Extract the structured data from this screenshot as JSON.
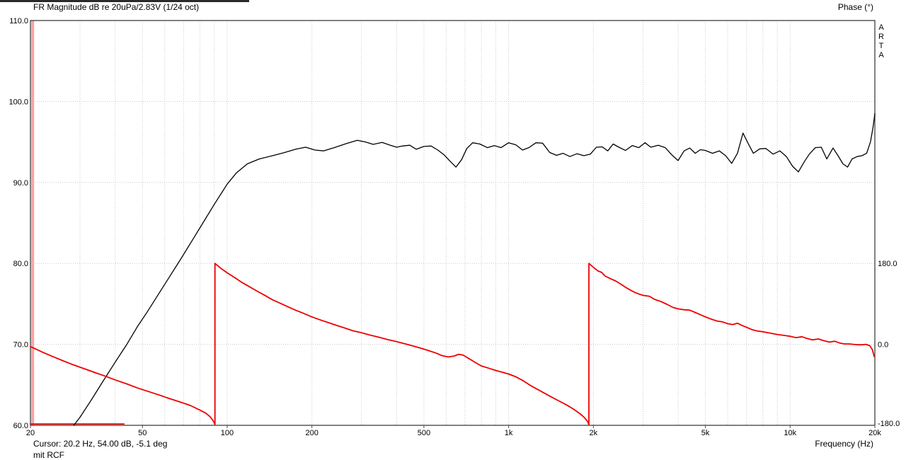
{
  "header": {
    "title": "FR Magnitude dB re 20uPa/2.83V (1/24 oct)",
    "right_axis_title": "Phase (°)",
    "brand_vertical": "ARTA"
  },
  "status": {
    "cursor_readout": "Cursor: 20.2 Hz, 54.00 dB, -5.1 deg",
    "note": "mit RCF",
    "x_axis_label": "Frequency (Hz)"
  },
  "colors": {
    "magnitude_curve": "#000000",
    "phase_curve": "#ee0000",
    "cursor_band": "#f7a4a4",
    "grid": "#c8c8c8",
    "frame": "#4d4d4d",
    "background": "#ffffff"
  },
  "chart_data": {
    "type": "line",
    "title": "FR Magnitude dB re 20uPa/2.83V (1/24 oct)",
    "x_axis": {
      "label": "Frequency (Hz)",
      "scale": "log",
      "min": 20,
      "max": 20000,
      "tick_values": [
        20,
        50,
        100,
        200,
        500,
        1000,
        2000,
        5000,
        10000,
        20000
      ],
      "tick_labels": [
        "20",
        "50",
        "100",
        "200",
        "500",
        "1k",
        "2k",
        "5k",
        "10k",
        "20k"
      ],
      "minor_grid": [
        30,
        40,
        50,
        60,
        70,
        80,
        90,
        100,
        200,
        300,
        400,
        500,
        600,
        700,
        800,
        900,
        1000,
        2000,
        3000,
        4000,
        5000,
        6000,
        7000,
        8000,
        9000,
        10000
      ]
    },
    "y_left_axis": {
      "label": "dB",
      "min": 60,
      "max": 110,
      "tick_values": [
        110,
        100,
        90,
        80,
        70,
        60
      ],
      "tick_labels": [
        "110.0",
        "100.0",
        "90.0",
        "80.0",
        "70.0",
        "60.0"
      ],
      "grid_values": [
        100,
        90,
        80,
        70
      ]
    },
    "y_right_axis": {
      "label": "Phase (°)",
      "min": -180,
      "max": 180,
      "tick_values": [
        180,
        0,
        -180
      ],
      "tick_labels": [
        "180.0",
        "0.0",
        "-180.0"
      ],
      "maps_to_db_band": [
        60,
        80
      ]
    },
    "cursor": {
      "freq_hz": 20.2,
      "magnitude_db": 54.0,
      "phase_deg": -5.1
    },
    "grid": true,
    "legend": "none",
    "series": [
      {
        "name": "magnitude",
        "unit": "dB",
        "color": "#000000",
        "width": 1.3,
        "points": [
          [
            28.5,
            60.0
          ],
          [
            30,
            61.0
          ],
          [
            33,
            63.2
          ],
          [
            36,
            65.3
          ],
          [
            40,
            67.8
          ],
          [
            44,
            70.0
          ],
          [
            48,
            72.2
          ],
          [
            52,
            74.0
          ],
          [
            57,
            76.2
          ],
          [
            62,
            78.2
          ],
          [
            68,
            80.4
          ],
          [
            75,
            82.8
          ],
          [
            82,
            85.0
          ],
          [
            90,
            87.3
          ],
          [
            100,
            89.8
          ],
          [
            108,
            91.2
          ],
          [
            118,
            92.3
          ],
          [
            130,
            92.9
          ],
          [
            145,
            93.3
          ],
          [
            160,
            93.7
          ],
          [
            175,
            94.1
          ],
          [
            190,
            94.35
          ],
          [
            205,
            94.0
          ],
          [
            220,
            93.9
          ],
          [
            240,
            94.3
          ],
          [
            265,
            94.8
          ],
          [
            290,
            95.2
          ],
          [
            310,
            95.0
          ],
          [
            330,
            94.7
          ],
          [
            355,
            94.95
          ],
          [
            380,
            94.6
          ],
          [
            400,
            94.35
          ],
          [
            420,
            94.5
          ],
          [
            445,
            94.6
          ],
          [
            470,
            94.1
          ],
          [
            500,
            94.45
          ],
          [
            530,
            94.5
          ],
          [
            560,
            94.0
          ],
          [
            590,
            93.4
          ],
          [
            620,
            92.6
          ],
          [
            650,
            91.9
          ],
          [
            680,
            92.8
          ],
          [
            710,
            94.2
          ],
          [
            745,
            94.9
          ],
          [
            790,
            94.75
          ],
          [
            840,
            94.3
          ],
          [
            890,
            94.55
          ],
          [
            940,
            94.3
          ],
          [
            1000,
            94.9
          ],
          [
            1060,
            94.65
          ],
          [
            1120,
            94.0
          ],
          [
            1180,
            94.3
          ],
          [
            1250,
            94.9
          ],
          [
            1320,
            94.85
          ],
          [
            1400,
            93.7
          ],
          [
            1480,
            93.35
          ],
          [
            1560,
            93.6
          ],
          [
            1650,
            93.2
          ],
          [
            1750,
            93.55
          ],
          [
            1850,
            93.3
          ],
          [
            1950,
            93.5
          ],
          [
            2050,
            94.35
          ],
          [
            2150,
            94.4
          ],
          [
            2250,
            93.9
          ],
          [
            2350,
            94.75
          ],
          [
            2450,
            94.4
          ],
          [
            2600,
            93.95
          ],
          [
            2750,
            94.55
          ],
          [
            2900,
            94.3
          ],
          [
            3050,
            94.9
          ],
          [
            3200,
            94.35
          ],
          [
            3400,
            94.6
          ],
          [
            3600,
            94.3
          ],
          [
            3800,
            93.4
          ],
          [
            4000,
            92.7
          ],
          [
            4200,
            93.9
          ],
          [
            4400,
            94.25
          ],
          [
            4600,
            93.6
          ],
          [
            4800,
            94.05
          ],
          [
            5000,
            93.95
          ],
          [
            5300,
            93.6
          ],
          [
            5600,
            93.9
          ],
          [
            5900,
            93.3
          ],
          [
            6200,
            92.35
          ],
          [
            6500,
            93.6
          ],
          [
            6800,
            96.1
          ],
          [
            7100,
            94.8
          ],
          [
            7400,
            93.6
          ],
          [
            7800,
            94.15
          ],
          [
            8200,
            94.2
          ],
          [
            8700,
            93.5
          ],
          [
            9200,
            93.9
          ],
          [
            9700,
            93.2
          ],
          [
            10200,
            92.0
          ],
          [
            10700,
            91.3
          ],
          [
            11200,
            92.5
          ],
          [
            11700,
            93.5
          ],
          [
            12300,
            94.3
          ],
          [
            12900,
            94.35
          ],
          [
            13500,
            92.9
          ],
          [
            14200,
            94.25
          ],
          [
            14800,
            93.3
          ],
          [
            15400,
            92.3
          ],
          [
            16000,
            91.9
          ],
          [
            16600,
            92.9
          ],
          [
            17300,
            93.2
          ],
          [
            18000,
            93.3
          ],
          [
            18700,
            93.6
          ],
          [
            19300,
            95.0
          ],
          [
            19700,
            96.8
          ],
          [
            20000,
            98.5
          ]
        ]
      },
      {
        "name": "phase",
        "unit": "deg",
        "color": "#ee0000",
        "width": 1.8,
        "wraps_at_hz": [
          90.5,
          1928
        ],
        "points": [
          [
            20,
            -5
          ],
          [
            21,
            -11
          ],
          [
            22,
            -17
          ],
          [
            24,
            -27
          ],
          [
            26,
            -36
          ],
          [
            28,
            -44
          ],
          [
            31,
            -54
          ],
          [
            34,
            -63
          ],
          [
            37,
            -71
          ],
          [
            40,
            -79
          ],
          [
            44,
            -88
          ],
          [
            48,
            -97
          ],
          [
            52,
            -104
          ],
          [
            57,
            -112
          ],
          [
            62,
            -120
          ],
          [
            68,
            -128
          ],
          [
            74,
            -136
          ],
          [
            80,
            -146
          ],
          [
            84,
            -153
          ],
          [
            87,
            -161
          ],
          [
            89,
            -169
          ],
          [
            90.5,
            -178
          ],
          [
            90.5,
            180
          ],
          [
            95,
            169
          ],
          [
            100,
            159
          ],
          [
            106,
            149
          ],
          [
            112,
            139
          ],
          [
            120,
            128
          ],
          [
            128,
            118
          ],
          [
            136,
            109
          ],
          [
            145,
            99
          ],
          [
            155,
            91
          ],
          [
            165,
            83
          ],
          [
            175,
            76
          ],
          [
            185,
            70
          ],
          [
            200,
            61
          ],
          [
            215,
            54
          ],
          [
            230,
            48
          ],
          [
            245,
            42
          ],
          [
            260,
            37
          ],
          [
            280,
            30
          ],
          [
            300,
            26
          ],
          [
            320,
            21
          ],
          [
            345,
            16
          ],
          [
            370,
            11
          ],
          [
            400,
            6
          ],
          [
            430,
            1
          ],
          [
            460,
            -4
          ],
          [
            490,
            -9
          ],
          [
            520,
            -14
          ],
          [
            550,
            -19
          ],
          [
            580,
            -25
          ],
          [
            610,
            -28
          ],
          [
            640,
            -26
          ],
          [
            665,
            -22
          ],
          [
            690,
            -24
          ],
          [
            720,
            -31
          ],
          [
            760,
            -40
          ],
          [
            800,
            -48
          ],
          [
            850,
            -53
          ],
          [
            900,
            -58
          ],
          [
            950,
            -62
          ],
          [
            1000,
            -66
          ],
          [
            1060,
            -72
          ],
          [
            1120,
            -80
          ],
          [
            1200,
            -92
          ],
          [
            1300,
            -104
          ],
          [
            1400,
            -115
          ],
          [
            1500,
            -125
          ],
          [
            1600,
            -134
          ],
          [
            1700,
            -144
          ],
          [
            1800,
            -155
          ],
          [
            1860,
            -163
          ],
          [
            1910,
            -172
          ],
          [
            1928,
            -179
          ],
          [
            1928,
            180
          ],
          [
            1970,
            175
          ],
          [
            2020,
            169
          ],
          [
            2080,
            163
          ],
          [
            2140,
            160
          ],
          [
            2200,
            152
          ],
          [
            2300,
            146
          ],
          [
            2400,
            141
          ],
          [
            2500,
            134
          ],
          [
            2600,
            127
          ],
          [
            2700,
            121
          ],
          [
            2800,
            116
          ],
          [
            2900,
            112
          ],
          [
            3000,
            109
          ],
          [
            3160,
            107
          ],
          [
            3300,
            100
          ],
          [
            3480,
            95
          ],
          [
            3650,
            89
          ],
          [
            3840,
            82
          ],
          [
            4000,
            79
          ],
          [
            4200,
            77
          ],
          [
            4400,
            76
          ],
          [
            4600,
            71
          ],
          [
            4800,
            66
          ],
          [
            5000,
            61
          ],
          [
            5250,
            56
          ],
          [
            5500,
            52
          ],
          [
            5750,
            50
          ],
          [
            6000,
            46
          ],
          [
            6250,
            44
          ],
          [
            6500,
            47
          ],
          [
            6750,
            42
          ],
          [
            7000,
            38
          ],
          [
            7300,
            33
          ],
          [
            7600,
            30
          ],
          [
            8000,
            28
          ],
          [
            8500,
            25
          ],
          [
            9000,
            22
          ],
          [
            9500,
            20
          ],
          [
            10000,
            18
          ],
          [
            10500,
            15
          ],
          [
            11000,
            17
          ],
          [
            11500,
            13
          ],
          [
            12000,
            10
          ],
          [
            12600,
            12
          ],
          [
            13200,
            8
          ],
          [
            13800,
            5
          ],
          [
            14400,
            7
          ],
          [
            15000,
            3
          ],
          [
            15600,
            1
          ],
          [
            16200,
            1
          ],
          [
            16800,
            0
          ],
          [
            17400,
            -1
          ],
          [
            18000,
            -1
          ],
          [
            18600,
            0
          ],
          [
            19200,
            -3
          ],
          [
            19600,
            -12
          ],
          [
            19900,
            -27
          ]
        ]
      },
      {
        "name": "phase-bottom-segment",
        "unit": "deg",
        "color": "#ee0000",
        "width": 1.8,
        "points": [
          [
            20,
            -177
          ],
          [
            43,
            -177
          ]
        ]
      }
    ]
  }
}
